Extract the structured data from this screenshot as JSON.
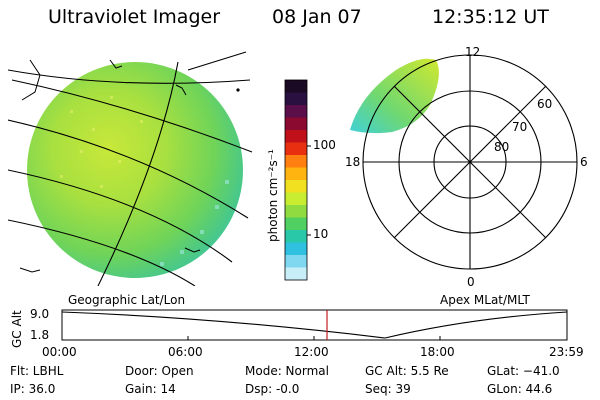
{
  "header": {
    "instrument": "Ultraviolet Imager",
    "date": "08 Jan 07",
    "time": "12:35:12 UT"
  },
  "colorbar": {
    "ticks": [
      "100",
      "10"
    ],
    "units_label": "photon cm⁻²s⁻¹",
    "colors": [
      "#1a0a24",
      "#2a1040",
      "#5a0f4a",
      "#8a0a30",
      "#c0101a",
      "#e83010",
      "#ff8010",
      "#ffb410",
      "#f0e020",
      "#c8ec30",
      "#90dc40",
      "#50d060",
      "#28c8a8",
      "#30c0e0",
      "#80d8f0",
      "#c8eef8"
    ]
  },
  "left_panel": {
    "title": "Geographic Lat/Lon"
  },
  "right_panel": {
    "title": "Apex MLat/MLT",
    "mlt_labels": {
      "top": "12",
      "bottom": "0",
      "left": "18",
      "right": "6"
    },
    "mlat_labels": [
      "60",
      "70",
      "80"
    ]
  },
  "altitude_plot": {
    "ylabel": "GC Alt",
    "y_ticks": [
      "9.0",
      "1.8"
    ],
    "x_ticks": [
      "00:00",
      "06:00",
      "12:00",
      "18:00",
      "23:59"
    ],
    "marker_color": "#c02020"
  },
  "status": {
    "flt": "Flt: LBHL",
    "ip": "IP: 36.0",
    "door": "Door: Open",
    "gain": "Gain: 14",
    "mode": "Mode: Normal",
    "dsp": "Dsp:    -0.0",
    "gc_alt": "GC Alt: 5.5 Re",
    "seq": "Seq: 39",
    "glat": "GLat: −41.0",
    "glon": "GLon:  44.6"
  }
}
